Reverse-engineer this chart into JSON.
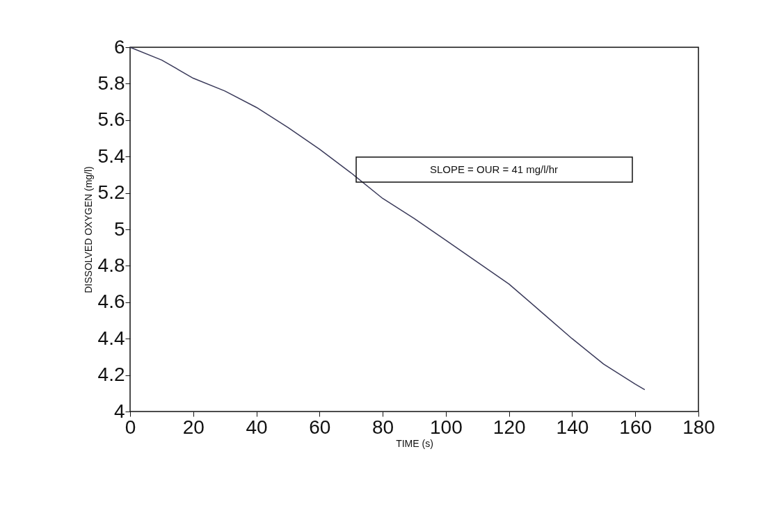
{
  "chart_data": {
    "type": "line",
    "xlabel": "TIME (s)",
    "ylabel": "DISSOLVED OXYGEN (mg/l)",
    "annotations": [
      "SLOPE = OUR = 41 mg/l/hr"
    ],
    "series": [
      {
        "color": "#3a3a5a",
        "x": [
          0,
          10,
          20,
          30,
          40,
          50,
          60,
          70,
          80,
          90,
          100,
          110,
          120,
          130,
          140,
          150,
          160,
          163
        ],
        "values": [
          6,
          5.93,
          5.83,
          5.76,
          5.67,
          5.56,
          5.44,
          5.31,
          5.17,
          5.06,
          4.94,
          4.82,
          4.7,
          4.55,
          4.4,
          4.26,
          4.15,
          4.12
        ]
      }
    ],
    "xlim": [
      0,
      180
    ],
    "xticks": [
      0,
      20,
      40,
      60,
      80,
      100,
      120,
      140,
      160,
      180
    ],
    "ylim": [
      4,
      6
    ],
    "yticks": [
      4,
      4.2,
      4.4,
      4.6,
      4.8,
      5,
      5.2,
      5.4,
      5.6,
      5.8,
      6
    ],
    "grid": false,
    "marker": "none",
    "line_style": "solid"
  }
}
